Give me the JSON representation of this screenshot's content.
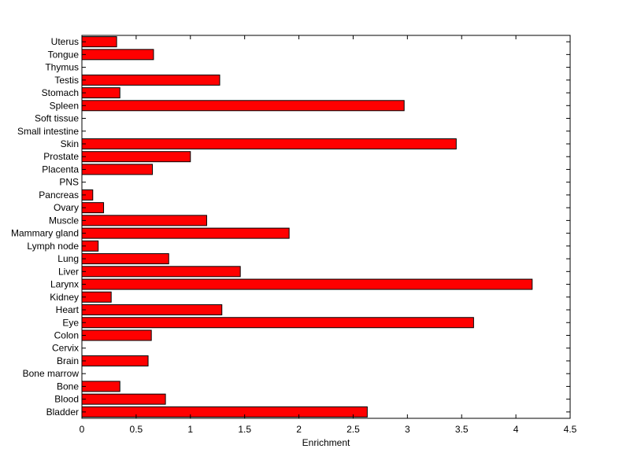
{
  "chart_data": {
    "type": "bar",
    "orientation": "horizontal",
    "title": "",
    "xlabel": "Enrichment",
    "ylabel": "",
    "xlim": [
      0,
      4.5
    ],
    "xticks": [
      0,
      0.5,
      1,
      1.5,
      2,
      2.5,
      3,
      3.5,
      4,
      4.5
    ],
    "xtick_labels": [
      "0",
      "0.5",
      "1",
      "1.5",
      "2",
      "2.5",
      "3",
      "3.5",
      "4",
      "4.5"
    ],
    "grid": false,
    "bar_color": "#ff0000",
    "edge_color": "#000000",
    "categories": [
      "Uterus",
      "Tongue",
      "Thymus",
      "Testis",
      "Stomach",
      "Spleen",
      "Soft tissue",
      "Small intestine",
      "Skin",
      "Prostate",
      "Placenta",
      "PNS",
      "Pancreas",
      "Ovary",
      "Muscle",
      "Mammary gland",
      "Lymph node",
      "Lung",
      "Liver",
      "Larynx",
      "Kidney",
      "Heart",
      "Eye",
      "Colon",
      "Cervix",
      "Brain",
      "Bone marrow",
      "Bone",
      "Blood",
      "Bladder"
    ],
    "values": [
      0.32,
      0.66,
      0,
      1.27,
      0.35,
      2.97,
      0,
      0,
      3.45,
      1.0,
      0.65,
      0,
      0.1,
      0.2,
      1.15,
      1.91,
      0.15,
      0.8,
      1.46,
      4.15,
      0.27,
      1.29,
      3.61,
      0.64,
      0,
      0.61,
      0,
      0.35,
      0.77,
      2.63
    ]
  }
}
